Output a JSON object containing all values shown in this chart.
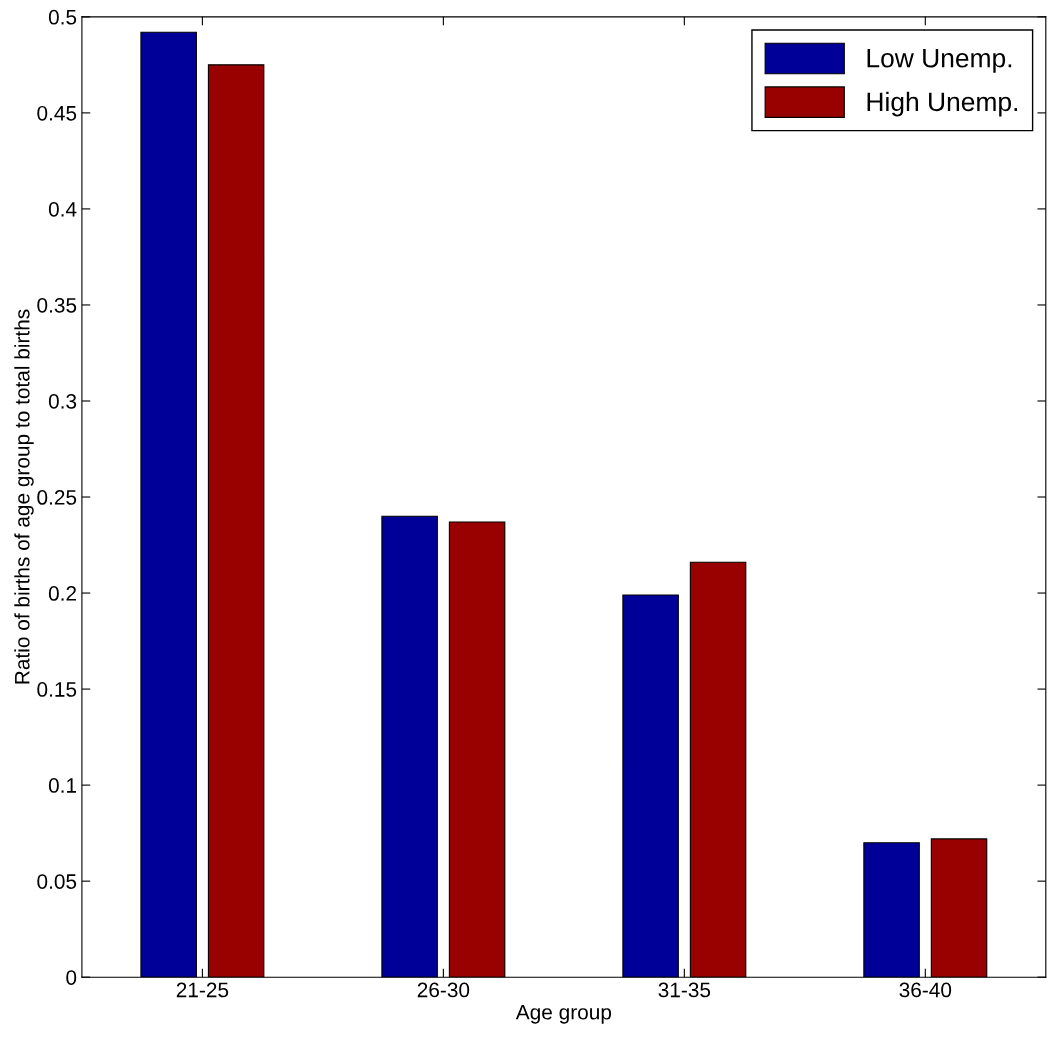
{
  "chart_data": {
    "type": "bar",
    "xlabel": "Age group",
    "ylabel": "Ratio of births of age group to total births",
    "categories": [
      "21-25",
      "26-30",
      "31-35",
      "36-40"
    ],
    "series": [
      {
        "name": "Low Unemp.",
        "color": "#000099",
        "values": [
          0.492,
          0.24,
          0.199,
          0.07
        ]
      },
      {
        "name": "High Unemp.",
        "color": "#990000",
        "values": [
          0.475,
          0.237,
          0.216,
          0.072
        ]
      }
    ],
    "ylim": [
      0,
      0.5
    ],
    "yticks": [
      0,
      0.05,
      0.1,
      0.15,
      0.2,
      0.25,
      0.3,
      0.35,
      0.4,
      0.45,
      0.5
    ],
    "grid": false,
    "legend": "top right"
  }
}
